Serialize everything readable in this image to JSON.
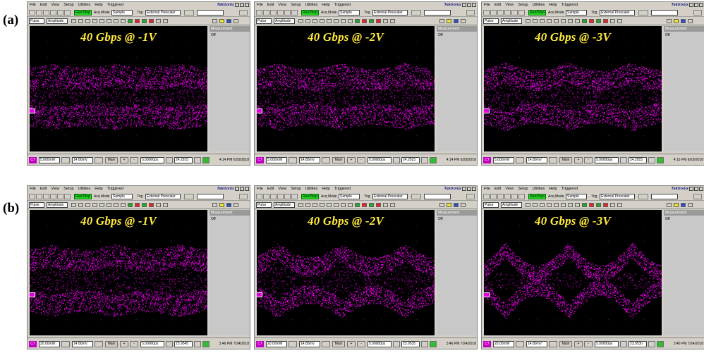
{
  "row_labels": [
    "(a)",
    "(b)"
  ],
  "menu": [
    "File",
    "Edit",
    "View",
    "Setup",
    "Utilities",
    "Help",
    "Triggered"
  ],
  "brand": "Tektronix",
  "toolbar": {
    "run_stop": "Run/Stop",
    "acq_mode_label": "Acq Mode",
    "acq_mode_value": "Sample",
    "trig_label": "Trig",
    "trig_value": "External Prescaler",
    "measure_select": "Pulse",
    "measure_type": "Amplitude"
  },
  "right_panel": {
    "header": "Measurement",
    "value": "Off"
  },
  "scope_colors": {
    "background": "#000000",
    "trace": "#ff00ff",
    "title": "#ffea3a",
    "run_button": "#22dd22"
  },
  "scopes": [
    {
      "title": "40 Gbps @ -1V",
      "status": {
        "ch": "C7",
        "scale": "5.000mW",
        "offset": "14.80mV",
        "timebase": "Main",
        "time_scale": "5.00000ps",
        "position": "24.2915",
        "timestamp": "4:14 PM 6/29/2018"
      },
      "eye": {
        "opening": 0.15,
        "band": 0.6
      }
    },
    {
      "title": "40 Gbps @ -2V",
      "status": {
        "ch": "C7",
        "scale": "5.000mW",
        "offset": "14.80mV",
        "timebase": "Main",
        "time_scale": "5.00000ps",
        "position": "24.2915",
        "timestamp": "4:14 PM 6/29/2018"
      },
      "eye": {
        "opening": 0.25,
        "band": 0.65
      }
    },
    {
      "title": "40 Gbps @ -3V",
      "status": {
        "ch": "C7",
        "scale": "5.000mW",
        "offset": "14.80mV",
        "timebase": "Main",
        "time_scale": "5.00000ps",
        "position": "24.2915",
        "timestamp": "4:15 PM 6/29/2018"
      },
      "eye": {
        "opening": 0.32,
        "band": 0.7
      }
    },
    {
      "title": "40 Gbps @ -1V",
      "status": {
        "ch": "C7",
        "scale": "20.00mW",
        "offset": "14.80mV",
        "timebase": "Main",
        "time_scale": "5.00000ps",
        "position": "23.9545",
        "timestamp": "3:46 PM 7/24/2018"
      },
      "eye": {
        "opening": 0.2,
        "band": 0.75
      }
    },
    {
      "title": "40 Gbps @ -2V",
      "status": {
        "ch": "C7",
        "scale": "20.00mW",
        "offset": "14.80mV",
        "timebase": "Main",
        "time_scale": "5.00000ps",
        "position": "23.9535",
        "timestamp": "3:46 PM 7/24/2018"
      },
      "eye": {
        "opening": 0.5,
        "band": 0.85
      }
    },
    {
      "title": "40 Gbps @ -3V",
      "status": {
        "ch": "C7",
        "scale": "20.00mW",
        "offset": "14.80mV",
        "timebase": "Main",
        "time_scale": "5.00000ps",
        "position": "23.953n",
        "timestamp": "3:40 PM 7/24/2018"
      },
      "eye": {
        "opening": 0.75,
        "band": 0.95
      }
    }
  ]
}
